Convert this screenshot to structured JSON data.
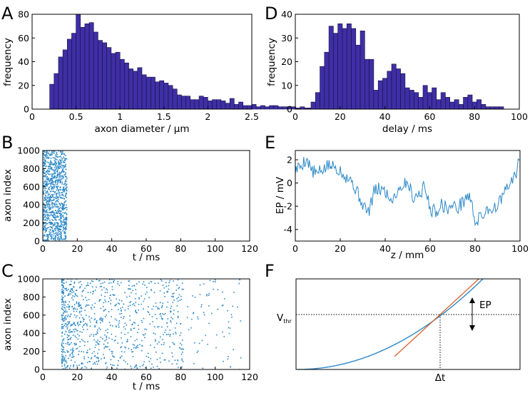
{
  "figure": {
    "panel_labels": [
      "A",
      "B",
      "C",
      "D",
      "E",
      "F"
    ]
  },
  "colors": {
    "bar_fill": "#3f2fa6",
    "trace": "#2b88c7",
    "tangent": "#d8612d"
  },
  "chart_data": [
    {
      "id": "A",
      "type": "bar",
      "xlabel": "axon diameter / µm",
      "ylabel": "frequency",
      "xlim": [
        0,
        2.5
      ],
      "ylim": [
        0,
        80
      ],
      "xticks": [
        0,
        0.5,
        1,
        1.5,
        2,
        2.5
      ],
      "xtick_labels": [
        "0",
        "0.5",
        "1",
        "1.5",
        "2",
        "2.5"
      ],
      "yticks": [
        0,
        20,
        40,
        60,
        80
      ],
      "bin_start": 0.2,
      "bin_width": 0.05,
      "values": [
        21,
        30,
        44,
        50,
        59,
        64,
        80,
        69,
        72,
        73,
        65,
        58,
        56,
        52,
        47,
        48,
        42,
        39,
        34,
        32,
        35,
        29,
        27,
        27,
        23,
        24,
        22,
        20,
        17,
        12,
        11,
        11,
        8,
        8,
        11,
        10,
        7,
        8,
        8,
        7,
        5,
        9,
        4,
        6,
        3,
        3,
        4,
        2,
        3,
        2,
        3,
        3,
        2,
        2,
        2,
        2,
        1,
        2,
        1,
        1,
        1,
        1,
        1,
        2
      ],
      "grid": false
    },
    {
      "id": "D",
      "type": "bar",
      "xlabel": "delay / ms",
      "ylabel": "frequency",
      "xlim": [
        0,
        100
      ],
      "ylim": [
        0,
        40
      ],
      "xticks": [
        0,
        20,
        40,
        60,
        80,
        100
      ],
      "yticks": [
        0,
        10,
        20,
        30,
        40
      ],
      "bin_start": 7,
      "bin_width": 2,
      "values": [
        3,
        7,
        18,
        24,
        35,
        32,
        36,
        34,
        36,
        34,
        27,
        33,
        21,
        21,
        8,
        12,
        13,
        16,
        19,
        17,
        15,
        9,
        8,
        7,
        5,
        10,
        7,
        9,
        4,
        7,
        5,
        3,
        4,
        2,
        5,
        6,
        3,
        4,
        2,
        1,
        1,
        1,
        1
      ],
      "grid": false
    },
    {
      "id": "B",
      "type": "scatter",
      "xlabel": "t / ms",
      "ylabel": "axon index",
      "xlim": [
        0,
        120
      ],
      "ylim": [
        0,
        1000
      ],
      "xticks": [
        0,
        20,
        40,
        60,
        80,
        100,
        120
      ],
      "yticks": [
        0,
        200,
        400,
        600,
        800,
        1000
      ],
      "series": [
        {
          "marker": "dot",
          "n_points": 1000,
          "t_range_ms": [
            0,
            14
          ],
          "index_range": [
            0,
            1000
          ]
        }
      ]
    },
    {
      "id": "C",
      "type": "scatter",
      "xlabel": "t / ms",
      "ylabel": "axon index",
      "xlim": [
        0,
        120
      ],
      "ylim": [
        0,
        1000
      ],
      "xticks": [
        0,
        20,
        40,
        60,
        80,
        100,
        120
      ],
      "yticks": [
        0,
        200,
        400,
        600,
        800,
        1000
      ],
      "series": [
        {
          "marker": "dot",
          "n_points": 1000,
          "t_range_ms": [
            10,
            115
          ],
          "index_range": [
            0,
            1000
          ]
        }
      ]
    },
    {
      "id": "E",
      "type": "line",
      "xlabel": "z / mm",
      "ylabel": "EP / mV",
      "xlim": [
        0,
        100
      ],
      "ylim": [
        -5,
        2.8
      ],
      "xticks": [
        0,
        20,
        40,
        60,
        80,
        100
      ],
      "yticks": [
        -4,
        -2,
        0,
        2
      ],
      "x": [
        0,
        2.5,
        5,
        7.5,
        10,
        12.5,
        15,
        17.5,
        20,
        22.5,
        25,
        27.5,
        30,
        32.5,
        35,
        37.5,
        40,
        42.5,
        45,
        47.5,
        50,
        52.5,
        55,
        57.5,
        60,
        62.5,
        65,
        67.5,
        70,
        72.5,
        75,
        77.5,
        80,
        82.5,
        85,
        87.5,
        90,
        92.5,
        95,
        97.5,
        100
      ],
      "y": [
        1.1,
        1.5,
        2.1,
        1.0,
        0.8,
        1.2,
        1.5,
        1.4,
        1.1,
        0.6,
        0.2,
        -0.8,
        -1.8,
        -2.6,
        -0.8,
        -0.5,
        -0.7,
        -1.5,
        -0.8,
        -0.2,
        0.1,
        -1.2,
        -1.0,
        -0.3,
        -2.2,
        -2.5,
        -1.8,
        -2.2,
        -2.0,
        -2.1,
        -1.5,
        -1.0,
        -3.3,
        -3.0,
        -2.3,
        -2.2,
        -2.0,
        -1.0,
        -0.3,
        0.5,
        2.0
      ]
    },
    {
      "id": "F",
      "type": "line",
      "xlabel": "",
      "ylabel": "",
      "axes_ticks": false,
      "series": [
        {
          "kind": "quadratic curve",
          "color": "#2b88c7"
        },
        {
          "kind": "tangent line",
          "color": "#d8612d"
        }
      ],
      "threshold_label": "V",
      "threshold_subscript": "thr",
      "delta_label": "Δt",
      "amplitude_label": "EP"
    }
  ]
}
